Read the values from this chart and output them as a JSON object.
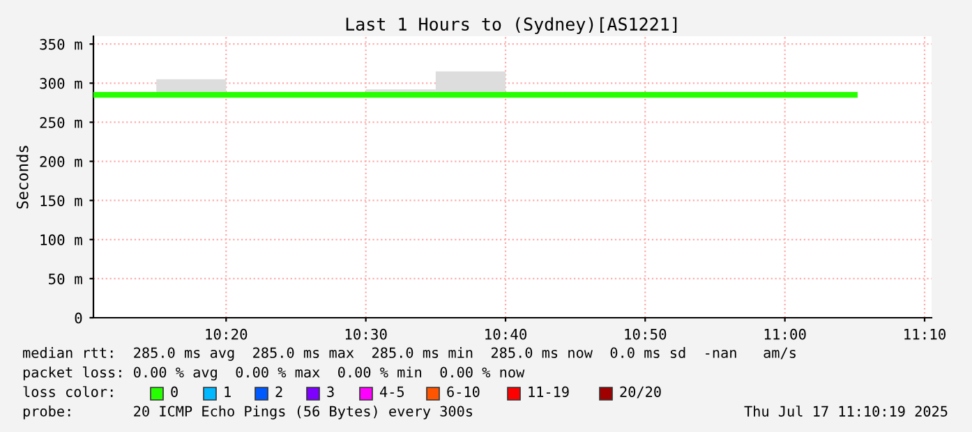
{
  "chart_data": {
    "type": "line",
    "title": "Last 1 Hours to (Sydney)[AS1221]",
    "ylabel": "Seconds",
    "xlim": [
      10.175,
      11.175
    ],
    "ylim": [
      0,
      360
    ],
    "xticks": [
      {
        "value": 10.3333,
        "label": "10:20"
      },
      {
        "value": 10.5,
        "label": "10:30"
      },
      {
        "value": 10.6667,
        "label": "10:40"
      },
      {
        "value": 10.8333,
        "label": "10:50"
      },
      {
        "value": 11.0,
        "label": "11:00"
      },
      {
        "value": 11.1667,
        "label": "11:10"
      }
    ],
    "yticks": [
      0,
      {
        "value": 50,
        "label": "50 m"
      },
      {
        "value": 100,
        "label": "100 m"
      },
      {
        "value": 150,
        "label": "150 m"
      },
      {
        "value": 200,
        "label": "200 m"
      },
      {
        "value": 250,
        "label": "250 m"
      },
      {
        "value": 300,
        "label": "300 m"
      },
      {
        "value": 350,
        "label": "350 m"
      }
    ],
    "grid": true,
    "legend": false,
    "series": [
      {
        "type": "bar",
        "color": "#dddddd",
        "x": [
          10.2917,
          10.5417,
          10.625
        ],
        "base": [
          285,
          285,
          285
        ],
        "values": [
          20,
          7,
          30
        ]
      },
      {
        "color": "#26ff00",
        "x": [
          10.175,
          11.0833
        ],
        "values": [
          285,
          285
        ]
      }
    ],
    "annotations": [
      "median rtt:  285.0 ms avg  285.0 ms max  285.0 ms min  285.0 ms now  0.0 ms sd  -nan   am/s",
      "packet loss: 0.00 % avg  0.00 % max  0.00 % min  0.00 % now",
      "loss color:",
      "0",
      "1",
      "2",
      "3",
      "4-5",
      "6-10",
      "11-19",
      "20/20",
      "probe:       20 ICMP Echo Pings (56 Bytes) every 300s",
      "Thu Jul 17 11:10:19 2025"
    ]
  }
}
